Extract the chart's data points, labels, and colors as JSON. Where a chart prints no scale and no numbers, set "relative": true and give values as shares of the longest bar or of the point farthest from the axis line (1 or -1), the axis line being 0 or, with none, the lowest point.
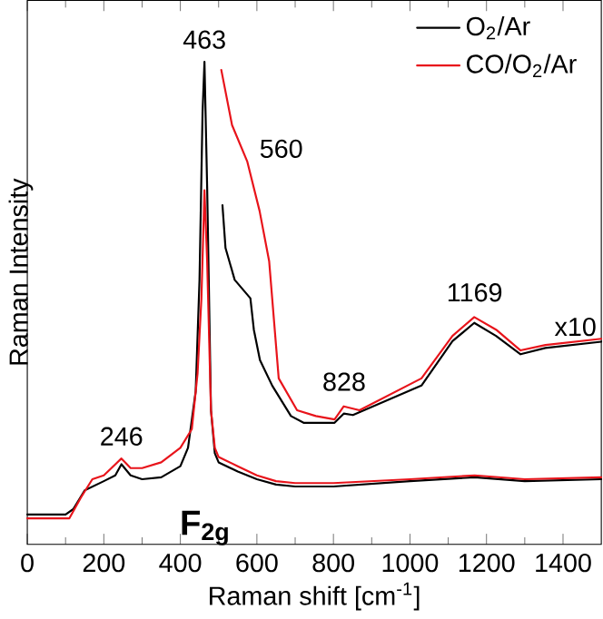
{
  "chart_data": {
    "type": "line",
    "xlabel": "Raman shift [cm$^{-1}$]",
    "ylabel": "Raman Intensity",
    "relative": true,
    "xlim": [
      0,
      1500
    ],
    "xticks": [
      0,
      200,
      400,
      600,
      800,
      1000,
      1200,
      1400
    ],
    "legend": "top right",
    "tick_labels": "x",
    "series": [
      {
        "name": "O$_{2}$/Ar",
        "color": "#000000",
        "x": [
          0,
          100,
          120,
          150,
          200,
          230,
          246,
          270,
          300,
          350,
          400,
          420,
          440,
          450,
          458,
          463,
          470,
          480,
          490,
          500,
          550,
          600,
          650,
          700,
          800,
          1000,
          1169,
          1300,
          1500
        ],
        "values": [
          0.062,
          0.062,
          0.073,
          0.112,
          0.131,
          0.143,
          0.166,
          0.143,
          0.135,
          0.139,
          0.162,
          0.2,
          0.317,
          0.548,
          0.896,
          1.0,
          0.741,
          0.278,
          0.189,
          0.17,
          0.151,
          0.135,
          0.124,
          0.12,
          0.12,
          0.131,
          0.139,
          0.131,
          0.135
        ]
      },
      {
        "name": "CO/O$_{2}$/Ar",
        "color": "#e8141b",
        "x": [
          0,
          110,
          140,
          170,
          200,
          246,
          270,
          300,
          350,
          400,
          430,
          445,
          455,
          463,
          470,
          480,
          490,
          500,
          550,
          600,
          650,
          700,
          800,
          1000,
          1169,
          1300,
          1500
        ],
        "values": [
          0.054,
          0.054,
          0.097,
          0.135,
          0.143,
          0.178,
          0.158,
          0.158,
          0.17,
          0.2,
          0.239,
          0.355,
          0.51,
          0.734,
          0.587,
          0.278,
          0.2,
          0.181,
          0.162,
          0.143,
          0.131,
          0.127,
          0.127,
          0.135,
          0.143,
          0.135,
          0.139
        ]
      },
      {
        "color": "#000000",
        "x": [
          510,
          518,
          542,
          583,
          592,
          608,
          640,
          689,
          722,
          803,
          827,
          851,
          1030,
          1111,
          1168,
          1225,
          1289,
          1354,
          1500
        ],
        "values": [
          0.703,
          0.614,
          0.548,
          0.51,
          0.445,
          0.382,
          0.329,
          0.266,
          0.252,
          0.252,
          0.271,
          0.268,
          0.329,
          0.421,
          0.459,
          0.432,
          0.394,
          0.407,
          0.42
        ]
      },
      {
        "color": "#e8141b",
        "x": [
          507,
          535,
          575,
          607,
          632,
          657,
          705,
          754,
          803,
          827,
          868,
          1030,
          1111,
          1168,
          1225,
          1289,
          1354,
          1500
        ],
        "values": [
          0.983,
          0.869,
          0.793,
          0.691,
          0.587,
          0.344,
          0.278,
          0.266,
          0.259,
          0.286,
          0.278,
          0.344,
          0.432,
          0.471,
          0.445,
          0.402,
          0.413,
          0.426
        ]
      }
    ],
    "annotations": [
      {
        "text": "463",
        "x": 463,
        "y": 1.0
      },
      {
        "text": "560",
        "x": 560,
        "y": 0.82
      },
      {
        "text": "246",
        "x": 246,
        "y": 0.178
      },
      {
        "text": "828",
        "x": 828,
        "y": 0.286
      },
      {
        "text": "1169",
        "x": 1169,
        "y": 0.471
      },
      "x10",
      "F$_{2g}$"
    ]
  }
}
